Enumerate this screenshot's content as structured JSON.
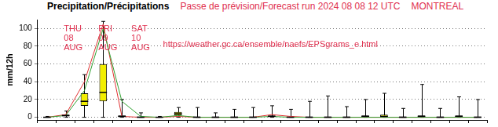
{
  "chart_data": {
    "type": "box",
    "title": "Precipitation/Précipitations",
    "subtitle": [
      "Passe de prévision/Forecast run 2024 08 08 12 UTC",
      "MONTREAL"
    ],
    "subtitle_color": "#e0304f",
    "ylabel": "mm/12h",
    "categories": [
      null,
      null,
      null,
      null,
      null,
      null,
      null,
      null,
      null,
      null,
      null,
      null,
      null,
      null,
      null,
      null,
      null,
      null,
      null,
      null,
      null,
      null,
      null,
      null
    ],
    "ylim": [
      -3,
      110
    ],
    "yticks": [
      0,
      20,
      40,
      60,
      80,
      100
    ],
    "grid": true,
    "tick_labels": "y",
    "series": [
      {
        "type": "box",
        "color": "#f2ee00",
        "min": [
          0,
          0,
          0,
          0,
          0,
          0,
          0,
          0,
          0,
          0,
          0,
          0,
          0,
          0,
          0,
          0,
          0,
          0,
          0,
          0,
          0,
          0,
          0,
          0
        ],
        "q1": [
          0,
          1,
          13,
          18,
          0,
          0,
          0,
          2,
          0,
          0,
          0,
          0,
          0,
          0,
          0,
          0,
          0,
          0,
          0,
          0,
          0,
          0,
          0,
          0
        ],
        "median": [
          0,
          2,
          18,
          28,
          1,
          0,
          0,
          4,
          0,
          0,
          0,
          0,
          1,
          0,
          0,
          0,
          0,
          1,
          1,
          0,
          1,
          0,
          1,
          0
        ],
        "q3": [
          0,
          3,
          27,
          60,
          2,
          1,
          0,
          6,
          1,
          1,
          1,
          1,
          2,
          1,
          1,
          1,
          1,
          2,
          3,
          1,
          2,
          1,
          2,
          1
        ],
        "max": [
          1,
          7,
          48,
          108,
          20,
          5,
          1,
          11,
          11,
          5,
          9,
          11,
          13,
          9,
          18,
          24,
          12,
          20,
          27,
          10,
          37,
          10,
          23,
          20
        ]
      },
      {
        "type": "line",
        "color": "#30a030",
        "values": [
          0,
          2,
          30,
          100,
          18,
          1,
          0,
          2,
          0,
          0,
          0,
          0,
          1,
          0,
          0,
          0,
          0,
          0,
          0,
          0,
          0,
          0,
          0,
          0
        ]
      },
      {
        "type": "line",
        "color": "#e03030",
        "values": [
          0,
          3,
          40,
          105,
          1,
          0,
          0,
          1,
          0,
          0,
          0,
          0,
          3,
          1,
          0,
          0,
          0,
          0,
          0,
          0,
          0,
          0,
          0,
          0
        ]
      }
    ],
    "annotations": [
      {
        "text": "THU\n08\nAUG",
        "x": 0.9,
        "y": 104,
        "color": "#e0304f"
      },
      {
        "text": "FRI\n09\nAUG",
        "x": 2.75,
        "y": 104,
        "color": "#e0304f"
      },
      {
        "text": "SAT\n10\nAUG",
        "x": 4.5,
        "y": 104,
        "color": "#e0304f"
      },
      {
        "text": "https://weather.gc.ca/ensemble/naefs/EPSgrams_e.html",
        "x": 6.2,
        "y": 87,
        "color": "#e0304f"
      }
    ]
  }
}
